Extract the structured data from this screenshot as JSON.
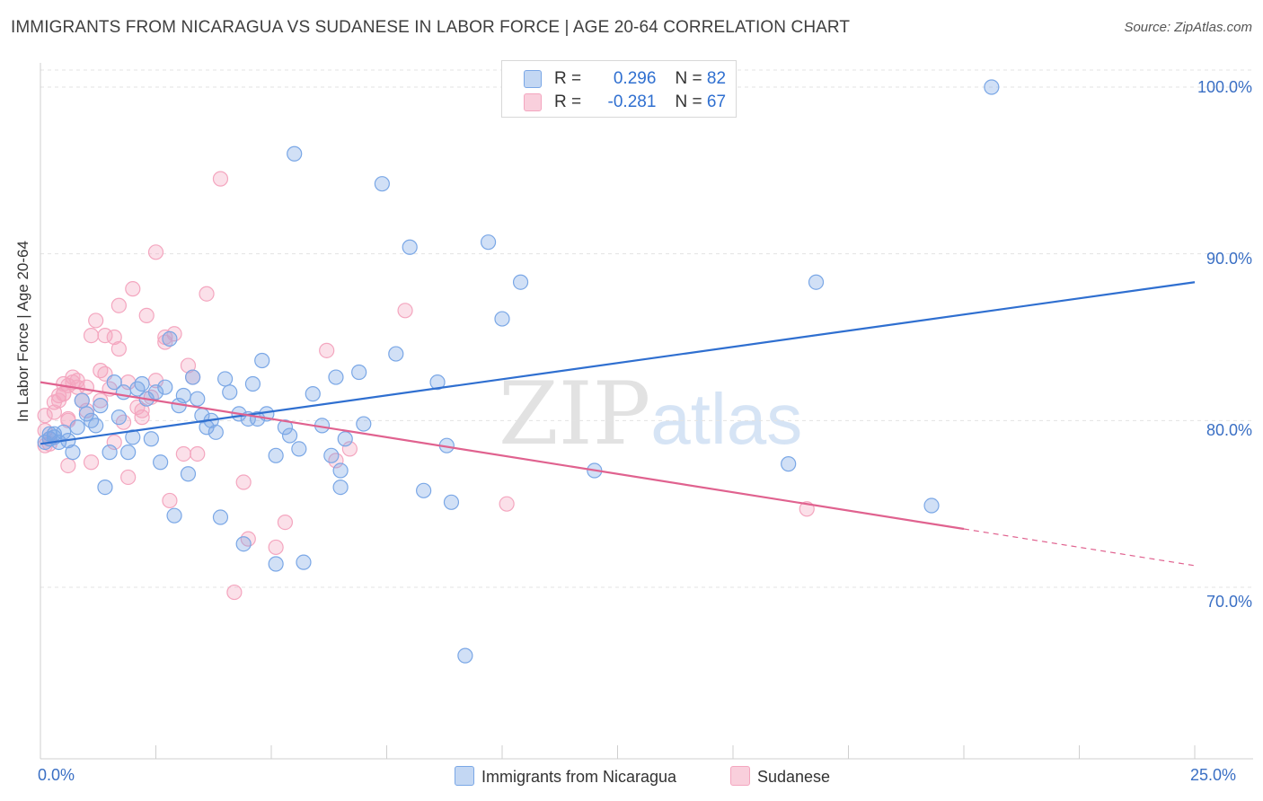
{
  "title": "IMMIGRANTS FROM NICARAGUA VS SUDANESE IN LABOR FORCE | AGE 20-64 CORRELATION CHART",
  "source": "Source: ZipAtlas.com",
  "watermark": {
    "zip": "ZIP",
    "atlas": "atlas"
  },
  "legend": {
    "series1": {
      "r_label": "R =",
      "r_value": "0.296",
      "n_label": "N =",
      "n_value": "82"
    },
    "series2": {
      "r_label": "R =",
      "r_value": "-0.281",
      "n_label": "N =",
      "n_value": "67"
    }
  },
  "chart_data": {
    "type": "scatter",
    "title": "IMMIGRANTS FROM NICARAGUA VS SUDANESE IN LABOR FORCE | AGE 20-64 CORRELATION CHART",
    "xlabel": "",
    "ylabel": "In Labor Force | Age 20-64",
    "xlim": [
      0,
      25
    ],
    "ylim": [
      60.5,
      102
    ],
    "x_tick_labels": [
      "0.0%",
      "25.0%"
    ],
    "y_ticks": [
      70,
      80,
      90,
      100
    ],
    "y_tick_labels": [
      "70.0%",
      "80.0%",
      "90.0%",
      "100.0%"
    ],
    "grid": true,
    "legend_position": "top-center",
    "colors": {
      "nicaragua": "#7aa7e6",
      "nicaragua_line": "#2f6fd0",
      "sudanese": "#f4a6bf",
      "sudanese_line": "#e0628f"
    },
    "series": [
      {
        "name": "Immigrants from Nicaragua",
        "trend": {
          "x": [
            0,
            25
          ],
          "y": [
            78.6,
            88.3
          ]
        },
        "points": [
          [
            0.1,
            78.7
          ],
          [
            0.2,
            78.9
          ],
          [
            0.3,
            79.2
          ],
          [
            0.3,
            79.0
          ],
          [
            0.4,
            78.7
          ],
          [
            0.5,
            79.3
          ],
          [
            0.6,
            78.8
          ],
          [
            0.7,
            78.1
          ],
          [
            0.8,
            79.6
          ],
          [
            0.9,
            81.2
          ],
          [
            1.0,
            80.4
          ],
          [
            1.1,
            80.0
          ],
          [
            1.2,
            79.7
          ],
          [
            1.3,
            80.9
          ],
          [
            1.4,
            76.0
          ],
          [
            1.5,
            78.1
          ],
          [
            1.6,
            82.3
          ],
          [
            1.7,
            80.2
          ],
          [
            1.8,
            81.7
          ],
          [
            1.9,
            78.1
          ],
          [
            2.0,
            79.0
          ],
          [
            2.1,
            81.9
          ],
          [
            2.2,
            82.2
          ],
          [
            2.3,
            81.3
          ],
          [
            2.4,
            78.9
          ],
          [
            2.5,
            81.7
          ],
          [
            2.6,
            77.5
          ],
          [
            2.7,
            82.0
          ],
          [
            2.8,
            84.9
          ],
          [
            2.9,
            74.3
          ],
          [
            3.0,
            80.9
          ],
          [
            3.1,
            81.5
          ],
          [
            3.2,
            76.8
          ],
          [
            3.3,
            82.6
          ],
          [
            3.4,
            81.3
          ],
          [
            3.5,
            80.3
          ],
          [
            3.6,
            79.6
          ],
          [
            3.7,
            80.0
          ],
          [
            3.8,
            79.3
          ],
          [
            3.9,
            74.2
          ],
          [
            4.0,
            82.5
          ],
          [
            4.1,
            81.7
          ],
          [
            4.3,
            80.4
          ],
          [
            4.4,
            72.6
          ],
          [
            4.5,
            80.1
          ],
          [
            4.6,
            82.2
          ],
          [
            4.7,
            80.1
          ],
          [
            4.8,
            83.6
          ],
          [
            4.9,
            80.4
          ],
          [
            5.1,
            71.4
          ],
          [
            5.1,
            77.9
          ],
          [
            5.3,
            79.6
          ],
          [
            5.4,
            79.1
          ],
          [
            5.5,
            96.0
          ],
          [
            5.6,
            78.3
          ],
          [
            5.7,
            71.5
          ],
          [
            5.9,
            81.6
          ],
          [
            6.1,
            79.7
          ],
          [
            6.3,
            77.9
          ],
          [
            6.4,
            82.6
          ],
          [
            6.5,
            77.0
          ],
          [
            6.5,
            76.0
          ],
          [
            6.6,
            78.9
          ],
          [
            6.9,
            82.9
          ],
          [
            7.0,
            79.8
          ],
          [
            7.4,
            94.2
          ],
          [
            7.7,
            84.0
          ],
          [
            8.0,
            90.4
          ],
          [
            8.3,
            75.8
          ],
          [
            8.6,
            82.3
          ],
          [
            8.8,
            78.5
          ],
          [
            8.9,
            75.1
          ],
          [
            9.2,
            65.9
          ],
          [
            9.7,
            90.7
          ],
          [
            10.0,
            86.1
          ],
          [
            10.4,
            88.3
          ],
          [
            12.0,
            77.0
          ],
          [
            16.2,
            77.4
          ],
          [
            16.8,
            88.3
          ],
          [
            19.3,
            74.9
          ],
          [
            20.6,
            100.0
          ],
          [
            0.2,
            79.2
          ]
        ]
      },
      {
        "name": "Sudanese",
        "trend": {
          "x": [
            0,
            20
          ],
          "y": [
            82.3,
            73.5
          ]
        },
        "trend_dashed": {
          "x": [
            20,
            25
          ],
          "y": [
            73.5,
            71.3
          ]
        },
        "points": [
          [
            0.1,
            79.4
          ],
          [
            0.1,
            80.3
          ],
          [
            0.2,
            78.9
          ],
          [
            0.3,
            80.5
          ],
          [
            0.3,
            81.1
          ],
          [
            0.4,
            81.5
          ],
          [
            0.4,
            81.2
          ],
          [
            0.5,
            82.2
          ],
          [
            0.5,
            81.6
          ],
          [
            0.6,
            82.1
          ],
          [
            0.6,
            77.3
          ],
          [
            0.6,
            80.0
          ],
          [
            0.7,
            82.6
          ],
          [
            0.7,
            82.3
          ],
          [
            0.8,
            82.0
          ],
          [
            0.8,
            82.4
          ],
          [
            0.9,
            81.2
          ],
          [
            1.0,
            80.6
          ],
          [
            1.0,
            82.0
          ],
          [
            1.1,
            77.5
          ],
          [
            1.1,
            85.1
          ],
          [
            1.2,
            86.0
          ],
          [
            1.3,
            81.2
          ],
          [
            1.3,
            83.0
          ],
          [
            1.4,
            85.1
          ],
          [
            1.4,
            82.8
          ],
          [
            1.5,
            81.9
          ],
          [
            1.6,
            85.0
          ],
          [
            1.6,
            78.7
          ],
          [
            1.7,
            84.3
          ],
          [
            1.7,
            86.9
          ],
          [
            1.8,
            79.9
          ],
          [
            1.9,
            76.6
          ],
          [
            1.9,
            82.3
          ],
          [
            2.0,
            87.9
          ],
          [
            2.1,
            80.8
          ],
          [
            2.2,
            80.2
          ],
          [
            2.2,
            80.6
          ],
          [
            2.3,
            86.3
          ],
          [
            2.4,
            81.4
          ],
          [
            2.5,
            82.4
          ],
          [
            2.5,
            90.1
          ],
          [
            2.7,
            85.0
          ],
          [
            2.7,
            84.7
          ],
          [
            2.8,
            75.2
          ],
          [
            2.9,
            85.2
          ],
          [
            3.1,
            78.0
          ],
          [
            3.2,
            83.3
          ],
          [
            3.3,
            82.6
          ],
          [
            3.4,
            78.0
          ],
          [
            3.6,
            87.6
          ],
          [
            3.9,
            94.5
          ],
          [
            4.2,
            69.7
          ],
          [
            4.4,
            76.3
          ],
          [
            4.5,
            72.9
          ],
          [
            5.1,
            72.4
          ],
          [
            5.3,
            73.9
          ],
          [
            6.2,
            84.2
          ],
          [
            6.4,
            77.6
          ],
          [
            6.7,
            78.3
          ],
          [
            7.9,
            86.6
          ],
          [
            10.1,
            75.0
          ],
          [
            16.6,
            74.7
          ],
          [
            0.5,
            81.6
          ],
          [
            0.2,
            78.6
          ],
          [
            0.1,
            78.5
          ],
          [
            0.6,
            80.1
          ]
        ]
      }
    ]
  },
  "bottom_legend": {
    "series1": "Immigrants from Nicaragua",
    "series2": "Sudanese"
  }
}
